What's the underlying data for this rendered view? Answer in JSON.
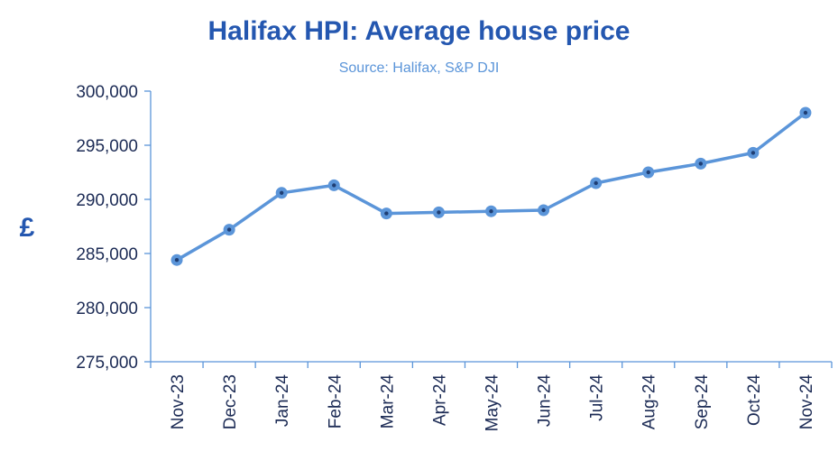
{
  "chart_data": {
    "type": "line",
    "title": "Halifax HPI: Average house price",
    "subtitle": "Source: Halifax, S&P DJI",
    "xlabel": "",
    "ylabel": "£",
    "categories": [
      "Nov-23",
      "Dec-23",
      "Jan-24",
      "Feb-24",
      "Mar-24",
      "Apr-24",
      "May-24",
      "Jun-24",
      "Jul-24",
      "Aug-24",
      "Sep-24",
      "Oct-24",
      "Nov-24"
    ],
    "series": [
      {
        "values": [
          284400,
          287200,
          290600,
          291300,
          288700,
          288800,
          288900,
          289000,
          291500,
          292500,
          293300,
          294300,
          298000
        ]
      }
    ],
    "ylim": [
      275000,
      300000
    ],
    "yticks": [
      275000,
      280000,
      285000,
      290000,
      295000,
      300000
    ],
    "ytick_labels": [
      "275,000",
      "280,000",
      "285,000",
      "290,000",
      "295,000",
      "300,000"
    ],
    "grid": false,
    "legend": "none",
    "colors": {
      "title": "#2457b0",
      "subtitle": "#5b95d9",
      "line": "#5b95d9",
      "axis": "#5b95d9",
      "marker_center": "#1f3e73",
      "ticks": "#1c2b55"
    }
  }
}
